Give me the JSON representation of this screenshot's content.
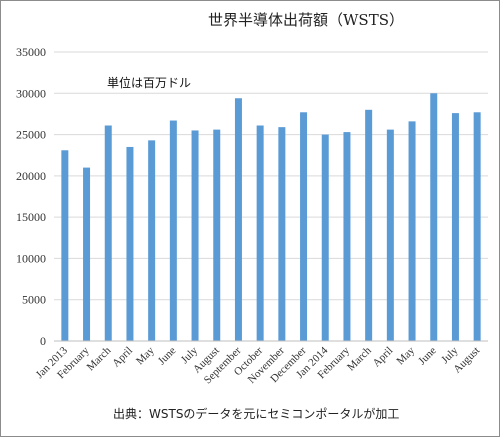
{
  "chart_data": {
    "type": "bar",
    "title": "世界半導体出荷額（WSTS）",
    "unit_label": "単位は百万ドル",
    "source_note": "出典：WSTSのデータを元にセミコンポータルが加工",
    "categories": [
      "Jan 2013",
      "February",
      "March",
      "April",
      "May",
      "June",
      "July",
      "August",
      "September",
      "October",
      "November",
      "December",
      "Jan 2014",
      "February",
      "March",
      "April",
      "May",
      "June",
      "July",
      "August"
    ],
    "values": [
      23100,
      21000,
      26100,
      23500,
      24300,
      26700,
      25500,
      25600,
      29400,
      26100,
      25900,
      27700,
      25000,
      25300,
      28000,
      25600,
      26600,
      30000,
      27600,
      27700
    ],
    "ylim": [
      0,
      35000
    ],
    "yticks": [
      0,
      5000,
      10000,
      15000,
      20000,
      25000,
      30000,
      35000
    ],
    "grid": true,
    "bar_color": "#5b9bd5"
  }
}
